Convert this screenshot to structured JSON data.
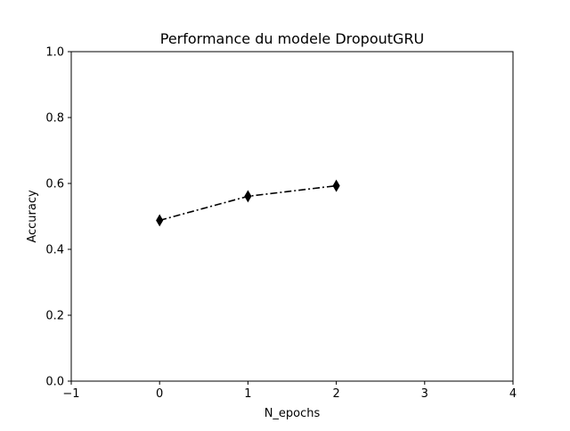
{
  "chart_data": {
    "type": "line",
    "title": "Performance du modele DropoutGRU",
    "xlabel": "N_epochs",
    "ylabel": "Accuracy",
    "xlim": [
      -1,
      4
    ],
    "ylim": [
      0.0,
      1.0
    ],
    "x_ticks": [
      "−1",
      "0",
      "1",
      "2",
      "3",
      "4"
    ],
    "y_ticks": [
      "0.0",
      "0.2",
      "0.4",
      "0.6",
      "0.8",
      "1.0"
    ],
    "grid": false,
    "series": [
      {
        "x": [
          0,
          1,
          2
        ],
        "values": [
          0.488,
          0.561,
          0.593
        ],
        "color": "#000000",
        "line_style": "dash-dot",
        "marker": "thin-diamond"
      }
    ]
  }
}
